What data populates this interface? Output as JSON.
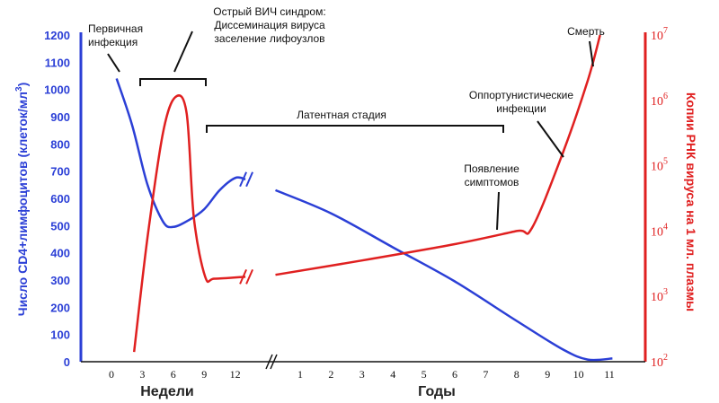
{
  "chart_data": {
    "type": "line",
    "y_left_label": "Число CD4+лимфоцитов (клеток/мл",
    "y_left_label_sup": "3",
    "y_left_label_close": ")",
    "y_left_ticks": [
      0,
      100,
      200,
      300,
      400,
      500,
      600,
      700,
      800,
      900,
      1000,
      1100,
      1200
    ],
    "y_left_range": [
      0,
      1200
    ],
    "y_right_label": "Копии РНК вируса на 1 мл. плазмы",
    "y_right_ticks": [
      {
        "base": "10",
        "exp": "2"
      },
      {
        "base": "10",
        "exp": "3"
      },
      {
        "base": "10",
        "exp": "4"
      },
      {
        "base": "10",
        "exp": "5"
      },
      {
        "base": "10",
        "exp": "6"
      },
      {
        "base": "10",
        "exp": "7"
      }
    ],
    "y_right_range_log10": [
      2,
      7
    ],
    "x_weeks_label": "Недели",
    "x_years_label": "Годы",
    "x_week_ticks": [
      "0",
      "3",
      "6",
      "9",
      "12"
    ],
    "x_year_ticks": [
      "1",
      "2",
      "3",
      "4",
      "5",
      "6",
      "7",
      "8",
      "9",
      "10",
      "11"
    ],
    "series": [
      {
        "name": "CD4",
        "color": "#2b3fd6",
        "axis": "left",
        "points": [
          {
            "period": "weeks",
            "x": 0.5,
            "y": 1040
          },
          {
            "period": "weeks",
            "x": 2,
            "y": 870
          },
          {
            "period": "weeks",
            "x": 3.5,
            "y": 650
          },
          {
            "period": "weeks",
            "x": 5,
            "y": 515
          },
          {
            "period": "weeks",
            "x": 6,
            "y": 495
          },
          {
            "period": "weeks",
            "x": 7.5,
            "y": 520
          },
          {
            "period": "weeks",
            "x": 9,
            "y": 560
          },
          {
            "period": "weeks",
            "x": 10.5,
            "y": 630
          },
          {
            "period": "weeks",
            "x": 12,
            "y": 675
          },
          {
            "period": "weeks",
            "x": 13,
            "y": 670
          },
          {
            "period": "years",
            "x": 0.2,
            "y": 630
          },
          {
            "period": "years",
            "x": 2,
            "y": 545
          },
          {
            "period": "years",
            "x": 4,
            "y": 420
          },
          {
            "period": "years",
            "x": 6,
            "y": 295
          },
          {
            "period": "years",
            "x": 8,
            "y": 150
          },
          {
            "period": "years",
            "x": 9.5,
            "y": 45
          },
          {
            "period": "years",
            "x": 10.3,
            "y": 8
          },
          {
            "period": "years",
            "x": 11.1,
            "y": 12
          }
        ]
      },
      {
        "name": "RNA",
        "color": "#e02020",
        "axis": "right",
        "points": [
          {
            "period": "weeks",
            "x": 2.2,
            "y_log10": 2.15
          },
          {
            "period": "weeks",
            "x": 3.5,
            "y_log10": 3.9
          },
          {
            "period": "weeks",
            "x": 5,
            "y_log10": 5.5
          },
          {
            "period": "weeks",
            "x": 6.2,
            "y_log10": 6.05
          },
          {
            "period": "weeks",
            "x": 7.3,
            "y_log10": 5.8
          },
          {
            "period": "weeks",
            "x": 8,
            "y_log10": 4.2
          },
          {
            "period": "weeks",
            "x": 9.1,
            "y_log10": 3.3
          },
          {
            "period": "weeks",
            "x": 10,
            "y_log10": 3.27
          },
          {
            "period": "weeks",
            "x": 13,
            "y_log10": 3.3
          },
          {
            "period": "years",
            "x": 0.2,
            "y_log10": 3.33
          },
          {
            "period": "years",
            "x": 3,
            "y_log10": 3.55
          },
          {
            "period": "years",
            "x": 6,
            "y_log10": 3.8
          },
          {
            "period": "years",
            "x": 8,
            "y_log10": 4.0
          },
          {
            "period": "years",
            "x": 8.5,
            "y_log10": 4.05
          },
          {
            "period": "years",
            "x": 9.5,
            "y_log10": 5.2
          },
          {
            "period": "years",
            "x": 10.3,
            "y_log10": 6.3
          },
          {
            "period": "years",
            "x": 10.7,
            "y_log10": 7.0
          }
        ]
      }
    ],
    "annotations": {
      "primary": [
        "Первичная",
        "инфекция"
      ],
      "acute": [
        "Острый ВИЧ синдром:",
        "Диссеминация вируса",
        "заселение лифоузлов"
      ],
      "latent": [
        "Латентная стадия"
      ],
      "symptoms": [
        "Появление",
        "симптомов"
      ],
      "opportunistic": [
        "Оппортунистические",
        "инфекции"
      ],
      "death": [
        "Смерть"
      ]
    }
  }
}
